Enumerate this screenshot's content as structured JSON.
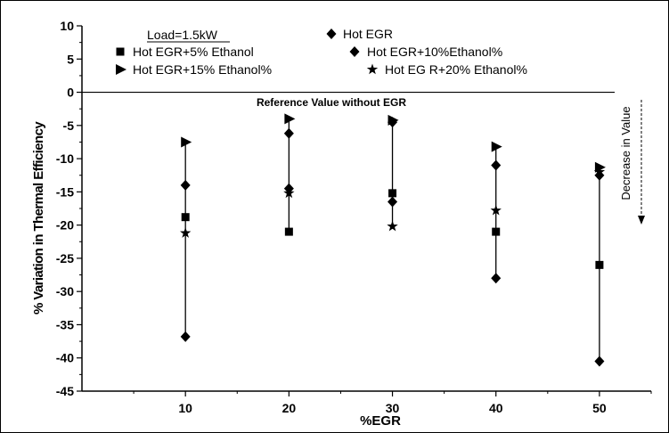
{
  "chart_data": {
    "type": "scatter",
    "title": "",
    "xlabel": "%EGR",
    "ylabel": "% Variation in Thermal Efficiency",
    "xlim": [
      0,
      55
    ],
    "ylim": [
      -45,
      10
    ],
    "xticks": [
      10,
      20,
      30,
      40,
      50
    ],
    "yticks": [
      10,
      5,
      0,
      -5,
      -10,
      -15,
      -20,
      -25,
      -30,
      -35,
      -40,
      -45
    ],
    "grid": false,
    "legend_position": "top",
    "load_label": "Load=1.5kW",
    "reference_label": "Reference Value without EGR",
    "decrease_label": "Decrease in Value",
    "series": [
      {
        "name": "Hot EGR",
        "marker": "diamond",
        "x": [
          10,
          20,
          30,
          40,
          50
        ],
        "y": [
          -14,
          -14.5,
          -16.5,
          -28,
          -40.5
        ]
      },
      {
        "name": "Hot EGR+5% Ethanol",
        "marker": "square",
        "x": [
          10,
          20,
          30,
          40,
          50
        ],
        "y": [
          -18.8,
          -21,
          -15.2,
          -21,
          -26
        ]
      },
      {
        "name": "Hot EGR+10%Ethanol%",
        "marker": "diamond",
        "x": [
          10,
          20,
          30,
          40,
          50
        ],
        "y": [
          -36.8,
          -6.2,
          -4.5,
          -11,
          -12.5
        ]
      },
      {
        "name": "Hot EGR+15% Ethanol%",
        "marker": "triangle-right",
        "x": [
          10,
          20,
          30,
          40,
          50
        ],
        "y": [
          -7.5,
          -4,
          -4.2,
          -8.2,
          -11.3
        ]
      },
      {
        "name": "Hot EG R+20% Ethanol%",
        "marker": "star",
        "x": [
          10,
          20,
          30,
          40,
          50
        ],
        "y": [
          -21.2,
          -15.2,
          -20.2,
          -17.8,
          -12
        ]
      }
    ],
    "range_lines": [
      {
        "x": 10,
        "y_top": -7.5,
        "y_bottom": -36.8
      },
      {
        "x": 20,
        "y_top": -4,
        "y_bottom": -21
      },
      {
        "x": 30,
        "y_top": -4.2,
        "y_bottom": -20.2
      },
      {
        "x": 40,
        "y_top": -8.2,
        "y_bottom": -28
      },
      {
        "x": 50,
        "y_top": -11.3,
        "y_bottom": -40.5
      }
    ]
  }
}
